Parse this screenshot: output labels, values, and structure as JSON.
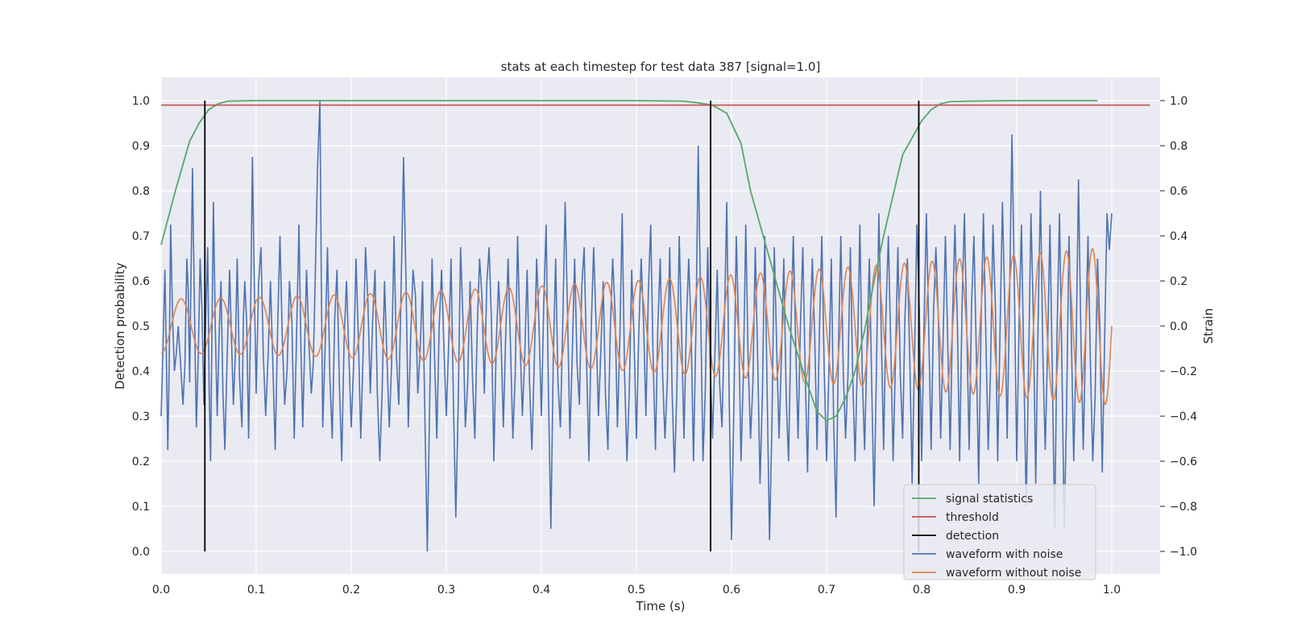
{
  "chart_data": {
    "type": "line",
    "title": "stats at each timestep for test data 387 [signal=1.0]",
    "xlabel": "Time (s)",
    "ylabel": "Detection probability",
    "y2label": "Strain",
    "xlim": [
      0.0,
      1.05
    ],
    "ylim": [
      -0.05,
      1.05
    ],
    "y2lim": [
      -1.1,
      1.1
    ],
    "xticks": [
      "0.0",
      "0.1",
      "0.2",
      "0.3",
      "0.4",
      "0.5",
      "0.6",
      "0.7",
      "0.8",
      "0.9",
      "1.0"
    ],
    "yticks": [
      "0.0",
      "0.1",
      "0.2",
      "0.3",
      "0.4",
      "0.5",
      "0.6",
      "0.7",
      "0.8",
      "0.9",
      "1.0"
    ],
    "y2ticks": [
      "−1.0",
      "−0.8",
      "−0.6",
      "−0.4",
      "−0.2",
      "0.0",
      "0.2",
      "0.4",
      "0.6",
      "0.8",
      "1.0"
    ],
    "grid": true,
    "legend_position": "lower-right",
    "colors": {
      "background": "#eaeaf2",
      "signal_statistics": "#55a868",
      "threshold": "#c44e52",
      "detection": "#000000",
      "waveform_with_noise": "#4c72b0",
      "waveform_without_noise": "#dd8452"
    },
    "series": [
      {
        "name": "signal statistics",
        "axis": "left",
        "x": [
          0.0,
          0.015,
          0.03,
          0.04,
          0.05,
          0.06,
          0.07,
          0.1,
          0.2,
          0.3,
          0.4,
          0.5,
          0.55,
          0.565,
          0.58,
          0.595,
          0.61,
          0.62,
          0.64,
          0.66,
          0.68,
          0.69,
          0.7,
          0.71,
          0.72,
          0.73,
          0.74,
          0.75,
          0.76,
          0.78,
          0.8,
          0.81,
          0.82,
          0.83,
          0.85,
          0.9,
          0.985
        ],
        "y": [
          0.68,
          0.8,
          0.91,
          0.95,
          0.98,
          0.993,
          0.999,
          1.0,
          1.0,
          1.0,
          1.0,
          1.0,
          0.999,
          0.995,
          0.99,
          0.972,
          0.905,
          0.8,
          0.65,
          0.5,
          0.37,
          0.31,
          0.29,
          0.3,
          0.34,
          0.4,
          0.49,
          0.6,
          0.7,
          0.88,
          0.955,
          0.98,
          0.993,
          0.998,
          0.999,
          1.0,
          1.0
        ]
      },
      {
        "name": "threshold",
        "axis": "left",
        "x": [
          0.0,
          1.04
        ],
        "y": [
          0.99,
          0.99
        ]
      },
      {
        "name": "detection",
        "axis": "left",
        "x": [
          0.046,
          0.578,
          0.797
        ],
        "y_from": 0.0,
        "y_to": 1.0
      },
      {
        "name": "waveform with noise",
        "axis": "right",
        "noise_peaks": [
          [
            0.0,
            -0.4
          ],
          [
            0.004,
            0.25
          ],
          [
            0.007,
            -0.55
          ],
          [
            0.01,
            0.45
          ],
          [
            0.014,
            -0.2
          ],
          [
            0.018,
            0.0
          ],
          [
            0.023,
            -0.35
          ],
          [
            0.027,
            0.3
          ],
          [
            0.03,
            -0.25
          ],
          [
            0.033,
            0.7
          ],
          [
            0.037,
            -0.45
          ],
          [
            0.041,
            0.3
          ],
          [
            0.045,
            -0.35
          ],
          [
            0.049,
            0.35
          ],
          [
            0.052,
            -0.6
          ],
          [
            0.055,
            0.55
          ],
          [
            0.059,
            -0.4
          ],
          [
            0.063,
            0.2
          ],
          [
            0.067,
            -0.55
          ],
          [
            0.072,
            0.25
          ],
          [
            0.076,
            -0.35
          ],
          [
            0.08,
            0.3
          ],
          [
            0.085,
            -0.45
          ],
          [
            0.088,
            0.2
          ],
          [
            0.092,
            -0.5
          ],
          [
            0.096,
            0.75
          ],
          [
            0.1,
            -0.3
          ],
          [
            0.105,
            0.35
          ],
          [
            0.11,
            -0.4
          ],
          [
            0.115,
            0.2
          ],
          [
            0.12,
            -0.55
          ],
          [
            0.125,
            0.4
          ],
          [
            0.13,
            -0.35
          ],
          [
            0.135,
            0.2
          ],
          [
            0.14,
            -0.5
          ],
          [
            0.145,
            0.45
          ],
          [
            0.149,
            -0.45
          ],
          [
            0.153,
            0.25
          ],
          [
            0.158,
            -0.3
          ],
          [
            0.162,
            0.2
          ],
          [
            0.167,
            1.0
          ],
          [
            0.17,
            -0.45
          ],
          [
            0.175,
            0.35
          ],
          [
            0.18,
            -0.5
          ],
          [
            0.185,
            0.25
          ],
          [
            0.19,
            -0.6
          ],
          [
            0.195,
            0.2
          ],
          [
            0.2,
            -0.45
          ],
          [
            0.205,
            0.3
          ],
          [
            0.21,
            -0.5
          ],
          [
            0.215,
            0.35
          ],
          [
            0.22,
            -0.3
          ],
          [
            0.225,
            0.25
          ],
          [
            0.23,
            -0.6
          ],
          [
            0.235,
            0.2
          ],
          [
            0.24,
            -0.45
          ],
          [
            0.245,
            0.4
          ],
          [
            0.25,
            -0.35
          ],
          [
            0.255,
            0.75
          ],
          [
            0.26,
            -0.45
          ],
          [
            0.265,
            0.25
          ],
          [
            0.27,
            -0.3
          ],
          [
            0.275,
            0.2
          ],
          [
            0.28,
            -1.0
          ],
          [
            0.285,
            0.3
          ],
          [
            0.29,
            -0.5
          ],
          [
            0.295,
            0.25
          ],
          [
            0.3,
            -0.4
          ],
          [
            0.305,
            0.3
          ],
          [
            0.31,
            -0.85
          ],
          [
            0.315,
            0.35
          ],
          [
            0.32,
            -0.45
          ],
          [
            0.325,
            0.2
          ],
          [
            0.33,
            -0.5
          ],
          [
            0.335,
            0.3
          ],
          [
            0.34,
            -0.3
          ],
          [
            0.345,
            0.35
          ],
          [
            0.35,
            -0.6
          ],
          [
            0.355,
            0.2
          ],
          [
            0.36,
            -0.45
          ],
          [
            0.365,
            0.3
          ],
          [
            0.37,
            -0.5
          ],
          [
            0.375,
            0.4
          ],
          [
            0.38,
            -0.4
          ],
          [
            0.385,
            0.25
          ],
          [
            0.39,
            -0.55
          ],
          [
            0.395,
            0.3
          ],
          [
            0.4,
            -0.4
          ],
          [
            0.405,
            0.45
          ],
          [
            0.41,
            -0.9
          ],
          [
            0.415,
            0.3
          ],
          [
            0.42,
            -0.45
          ],
          [
            0.425,
            0.55
          ],
          [
            0.43,
            -0.5
          ],
          [
            0.435,
            0.3
          ],
          [
            0.44,
            -0.35
          ],
          [
            0.445,
            0.35
          ],
          [
            0.45,
            -0.6
          ],
          [
            0.455,
            0.35
          ],
          [
            0.46,
            -0.4
          ],
          [
            0.465,
            0.2
          ],
          [
            0.47,
            -0.55
          ],
          [
            0.475,
            0.3
          ],
          [
            0.48,
            -0.45
          ],
          [
            0.485,
            0.5
          ],
          [
            0.49,
            -0.6
          ],
          [
            0.495,
            0.25
          ],
          [
            0.5,
            -0.5
          ],
          [
            0.505,
            0.3
          ],
          [
            0.51,
            -0.4
          ],
          [
            0.515,
            0.45
          ],
          [
            0.52,
            -0.55
          ],
          [
            0.525,
            0.3
          ],
          [
            0.53,
            -0.5
          ],
          [
            0.535,
            0.35
          ],
          [
            0.54,
            -0.65
          ],
          [
            0.545,
            0.4
          ],
          [
            0.55,
            -0.5
          ],
          [
            0.555,
            0.3
          ],
          [
            0.56,
            -0.6
          ],
          [
            0.565,
            0.8
          ],
          [
            0.57,
            -0.6
          ],
          [
            0.575,
            0.35
          ],
          [
            0.58,
            -0.5
          ],
          [
            0.585,
            0.25
          ],
          [
            0.59,
            -0.45
          ],
          [
            0.595,
            0.55
          ],
          [
            0.6,
            -0.95
          ],
          [
            0.605,
            0.4
          ],
          [
            0.61,
            -0.6
          ],
          [
            0.615,
            0.45
          ],
          [
            0.62,
            -0.5
          ],
          [
            0.625,
            0.35
          ],
          [
            0.63,
            -0.7
          ],
          [
            0.635,
            0.4
          ],
          [
            0.64,
            -0.95
          ],
          [
            0.645,
            0.35
          ],
          [
            0.65,
            -0.5
          ],
          [
            0.655,
            0.3
          ],
          [
            0.66,
            -0.6
          ],
          [
            0.665,
            0.4
          ],
          [
            0.67,
            -0.5
          ],
          [
            0.675,
            0.35
          ],
          [
            0.68,
            -0.65
          ],
          [
            0.685,
            0.3
          ],
          [
            0.69,
            -0.55
          ],
          [
            0.695,
            0.4
          ],
          [
            0.7,
            -0.6
          ],
          [
            0.705,
            0.3
          ],
          [
            0.71,
            -0.85
          ],
          [
            0.715,
            0.4
          ],
          [
            0.72,
            -0.5
          ],
          [
            0.725,
            0.35
          ],
          [
            0.73,
            -0.6
          ],
          [
            0.735,
            0.45
          ],
          [
            0.74,
            -0.55
          ],
          [
            0.745,
            0.3
          ],
          [
            0.75,
            -0.8
          ],
          [
            0.755,
            0.5
          ],
          [
            0.76,
            -0.55
          ],
          [
            0.765,
            0.4
          ],
          [
            0.77,
            -0.6
          ],
          [
            0.775,
            0.35
          ],
          [
            0.78,
            -0.5
          ],
          [
            0.785,
            0.3
          ],
          [
            0.79,
            -0.7
          ],
          [
            0.795,
            0.45
          ],
          [
            0.8,
            -0.6
          ],
          [
            0.805,
            0.5
          ],
          [
            0.81,
            -0.55
          ],
          [
            0.815,
            0.35
          ],
          [
            0.82,
            -0.5
          ],
          [
            0.825,
            0.4
          ],
          [
            0.83,
            -0.55
          ],
          [
            0.835,
            0.45
          ],
          [
            0.84,
            -0.6
          ],
          [
            0.845,
            0.5
          ],
          [
            0.85,
            -0.55
          ],
          [
            0.855,
            0.4
          ],
          [
            0.86,
            -0.7
          ],
          [
            0.865,
            0.5
          ],
          [
            0.87,
            -0.55
          ],
          [
            0.875,
            0.45
          ],
          [
            0.88,
            -0.6
          ],
          [
            0.885,
            0.55
          ],
          [
            0.89,
            -0.5
          ],
          [
            0.895,
            0.85
          ],
          [
            0.9,
            -0.6
          ],
          [
            0.905,
            0.45
          ],
          [
            0.91,
            -0.8
          ],
          [
            0.915,
            0.5
          ],
          [
            0.92,
            -0.7
          ],
          [
            0.925,
            0.6
          ],
          [
            0.93,
            -0.55
          ],
          [
            0.935,
            0.45
          ],
          [
            0.94,
            -0.9
          ],
          [
            0.945,
            0.5
          ],
          [
            0.95,
            -0.9
          ],
          [
            0.955,
            0.4
          ],
          [
            0.96,
            -0.6
          ],
          [
            0.965,
            0.65
          ],
          [
            0.97,
            -0.55
          ],
          [
            0.975,
            0.4
          ],
          [
            0.98,
            -0.6
          ],
          [
            0.985,
            0.3
          ],
          [
            0.99,
            -0.65
          ],
          [
            0.995,
            0.5
          ],
          [
            1.0,
            0.5
          ]
        ]
      },
      {
        "name": "waveform without noise",
        "axis": "right",
        "x_range": [
          0.0,
          1.0
        ],
        "chirp": {
          "f_start_hz": 23.5,
          "f_end_hz": 37.0,
          "amp_start": 0.12,
          "amp_end": 0.35
        }
      }
    ],
    "legend": [
      {
        "label": "signal statistics",
        "color": "#55a868"
      },
      {
        "label": "threshold",
        "color": "#c44e52"
      },
      {
        "label": "detection",
        "color": "#000000"
      },
      {
        "label": "waveform with noise",
        "color": "#4c72b0"
      },
      {
        "label": "waveform without noise",
        "color": "#dd8452"
      }
    ]
  }
}
